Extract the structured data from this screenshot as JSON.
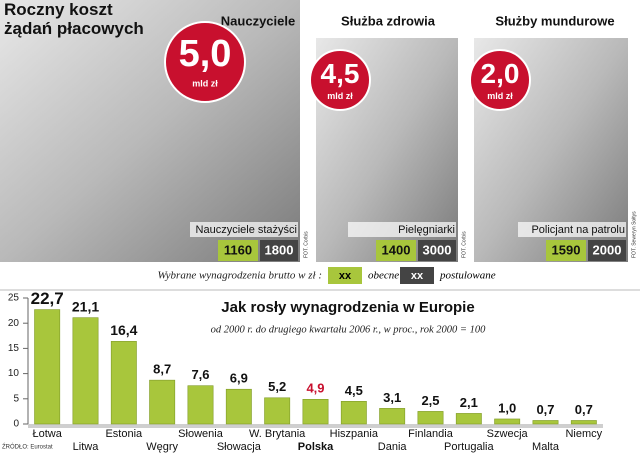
{
  "header": {
    "title": "Roczny koszt żądań płacowych"
  },
  "panels": [
    {
      "title": "Nauczyciele",
      "cost": "5,0",
      "unit": "mld zł",
      "role": "Nauczyciele stażyści",
      "current": 1160,
      "proposed": 1800,
      "credit": "FOT. Corbis"
    },
    {
      "title": "Służba zdrowia",
      "cost": "4,5",
      "unit": "mld zł",
      "role": "Pielęgniarki",
      "current": 1400,
      "proposed": 3000,
      "credit": "FOT. Corbis"
    },
    {
      "title": "Służby mundurowe",
      "cost": "2,0",
      "unit": "mld zł",
      "role": "Policjant na patrolu",
      "current": 1590,
      "proposed": 2000,
      "credit": "FOT. Seweryn Sołtys"
    }
  ],
  "legend": {
    "caption": "Wybrane wynagrodzenia brutto w zł :",
    "current_sample": "xx",
    "current": "obecne",
    "proposed_sample": "xx",
    "proposed": "postulowane"
  },
  "chart_data": {
    "type": "bar",
    "title": "Jak rosły wynagrodzenia w Europie",
    "subtitle": "od 2000 r. do drugiego kwartału 2006 r., w proc., rok 2000 = 100",
    "categories": [
      "Łotwa",
      "Litwa",
      "Estonia",
      "Węgry",
      "Słowenia",
      "Słowacja",
      "W. Brytania",
      "Polska",
      "Hiszpania",
      "Dania",
      "Finlandia",
      "Portugalia",
      "Szwecja",
      "Malta",
      "Niemcy"
    ],
    "values": [
      22.7,
      21.1,
      16.4,
      8.7,
      7.6,
      6.9,
      5.2,
      4.9,
      4.5,
      3.1,
      2.5,
      2.1,
      1.0,
      0.7,
      0.7
    ],
    "value_labels": [
      "22,7",
      "21,1",
      "16,4",
      "8,7",
      "7,6",
      "6,9",
      "5,2",
      "4,9",
      "4,5",
      "3,1",
      "2,5",
      "2,1",
      "1,0",
      "0,7",
      "0,7"
    ],
    "color": "#a8c63c",
    "highlight_index": 7,
    "highlight_color": "#c8102e",
    "ylim": [
      0,
      25
    ],
    "yticks": [
      0,
      5,
      10,
      15,
      20,
      25
    ],
    "grid": false
  },
  "source": "ŹRÓDŁO: Eurostat"
}
